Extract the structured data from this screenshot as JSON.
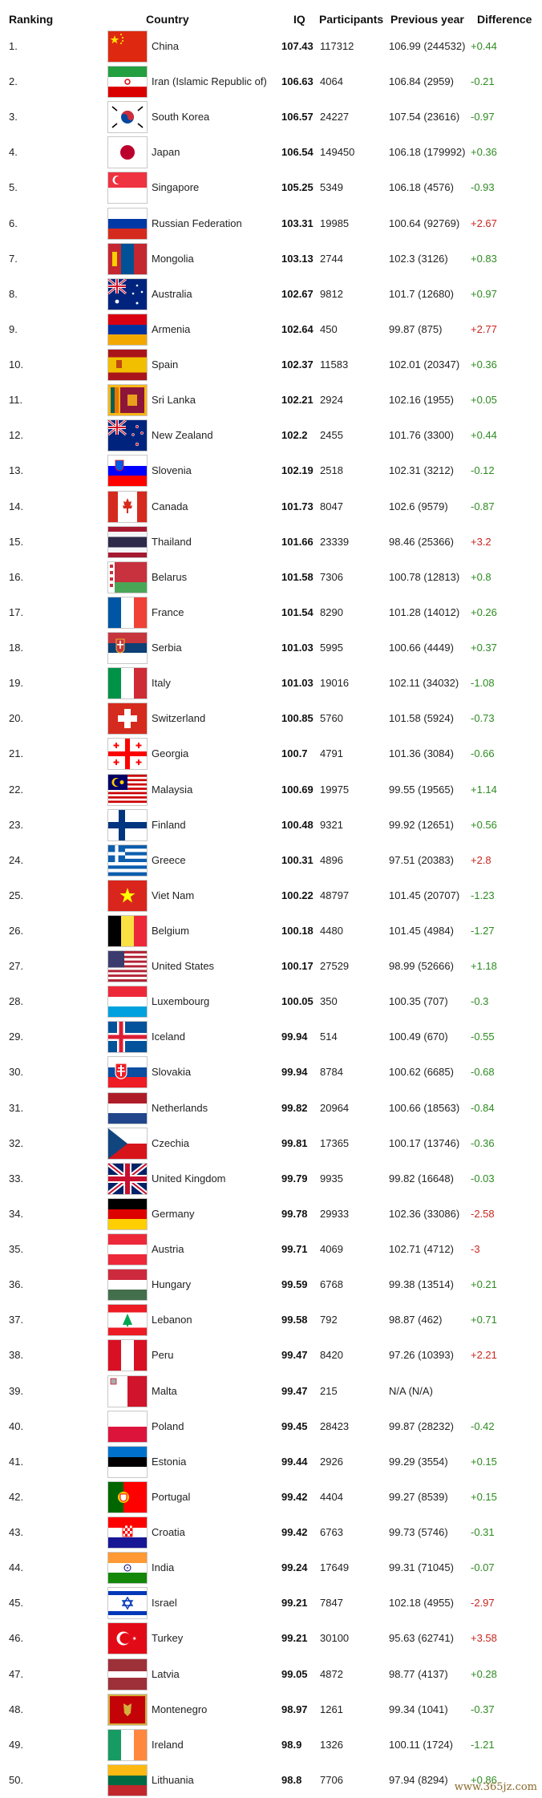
{
  "headers": {
    "ranking": "Ranking",
    "country": "Country",
    "iq": "IQ",
    "participants": "Participants",
    "previous_year": "Previous year",
    "difference": "Difference"
  },
  "rows": [
    {
      "rank": "1.",
      "country": "China",
      "iq": "107.43",
      "participants": "117312",
      "prev": "106.99 (244532)",
      "diff": "+0.44",
      "trend": "pos",
      "flag": "cn"
    },
    {
      "rank": "2.",
      "country": "Iran (Islamic Republic of)",
      "iq": "106.63",
      "participants": "4064",
      "prev": "106.84 (2959)",
      "diff": "-0.21",
      "trend": "pos",
      "flag": "ir"
    },
    {
      "rank": "3.",
      "country": "South Korea",
      "iq": "106.57",
      "participants": "24227",
      "prev": "107.54 (23616)",
      "diff": "-0.97",
      "trend": "pos",
      "flag": "kr"
    },
    {
      "rank": "4.",
      "country": "Japan",
      "iq": "106.54",
      "participants": "149450",
      "prev": "106.18 (179992)",
      "diff": "+0.36",
      "trend": "pos",
      "flag": "jp"
    },
    {
      "rank": "5.",
      "country": "Singapore",
      "iq": "105.25",
      "participants": "5349",
      "prev": "106.18 (4576)",
      "diff": "-0.93",
      "trend": "pos",
      "flag": "sg"
    },
    {
      "rank": "6.",
      "country": "Russian Federation",
      "iq": "103.31",
      "participants": "19985",
      "prev": "100.64 (92769)",
      "diff": "+2.67",
      "trend": "neg",
      "flag": "ru"
    },
    {
      "rank": "7.",
      "country": "Mongolia",
      "iq": "103.13",
      "participants": "2744",
      "prev": "102.3 (3126)",
      "diff": "+0.83",
      "trend": "pos",
      "flag": "mn"
    },
    {
      "rank": "8.",
      "country": "Australia",
      "iq": "102.67",
      "participants": "9812",
      "prev": "101.7 (12680)",
      "diff": "+0.97",
      "trend": "pos",
      "flag": "au"
    },
    {
      "rank": "9.",
      "country": "Armenia",
      "iq": "102.64",
      "participants": "450",
      "prev": "99.87 (875)",
      "diff": "+2.77",
      "trend": "neg",
      "flag": "am"
    },
    {
      "rank": "10.",
      "country": "Spain",
      "iq": "102.37",
      "participants": "11583",
      "prev": "102.01 (20347)",
      "diff": "+0.36",
      "trend": "pos",
      "flag": "es"
    },
    {
      "rank": "11.",
      "country": "Sri Lanka",
      "iq": "102.21",
      "participants": "2924",
      "prev": "102.16 (1955)",
      "diff": "+0.05",
      "trend": "pos",
      "flag": "lk"
    },
    {
      "rank": "12.",
      "country": "New Zealand",
      "iq": "102.2",
      "participants": "2455",
      "prev": "101.76 (3300)",
      "diff": "+0.44",
      "trend": "pos",
      "flag": "nz"
    },
    {
      "rank": "13.",
      "country": "Slovenia",
      "iq": "102.19",
      "participants": "2518",
      "prev": "102.31 (3212)",
      "diff": "-0.12",
      "trend": "pos",
      "flag": "si"
    },
    {
      "rank": "14.",
      "country": "Canada",
      "iq": "101.73",
      "participants": "8047",
      "prev": "102.6 (9579)",
      "diff": "-0.87",
      "trend": "pos",
      "flag": "ca"
    },
    {
      "rank": "15.",
      "country": "Thailand",
      "iq": "101.66",
      "participants": "23339",
      "prev": "98.46 (25366)",
      "diff": "+3.2",
      "trend": "neg",
      "flag": "th"
    },
    {
      "rank": "16.",
      "country": "Belarus",
      "iq": "101.58",
      "participants": "7306",
      "prev": "100.78 (12813)",
      "diff": "+0.8",
      "trend": "pos",
      "flag": "by"
    },
    {
      "rank": "17.",
      "country": "France",
      "iq": "101.54",
      "participants": "8290",
      "prev": "101.28 (14012)",
      "diff": "+0.26",
      "trend": "pos",
      "flag": "fr"
    },
    {
      "rank": "18.",
      "country": "Serbia",
      "iq": "101.03",
      "participants": "5995",
      "prev": "100.66 (4449)",
      "diff": "+0.37",
      "trend": "pos",
      "flag": "rs"
    },
    {
      "rank": "19.",
      "country": "Italy",
      "iq": "101.03",
      "participants": "19016",
      "prev": "102.11 (34032)",
      "diff": "-1.08",
      "trend": "pos",
      "flag": "it"
    },
    {
      "rank": "20.",
      "country": "Switzerland",
      "iq": "100.85",
      "participants": "5760",
      "prev": "101.58 (5924)",
      "diff": "-0.73",
      "trend": "pos",
      "flag": "ch"
    },
    {
      "rank": "21.",
      "country": "Georgia",
      "iq": "100.7",
      "participants": "4791",
      "prev": "101.36 (3084)",
      "diff": "-0.66",
      "trend": "pos",
      "flag": "ge"
    },
    {
      "rank": "22.",
      "country": "Malaysia",
      "iq": "100.69",
      "participants": "19975",
      "prev": "99.55 (19565)",
      "diff": "+1.14",
      "trend": "pos",
      "flag": "my"
    },
    {
      "rank": "23.",
      "country": "Finland",
      "iq": "100.48",
      "participants": "9321",
      "prev": "99.92 (12651)",
      "diff": "+0.56",
      "trend": "pos",
      "flag": "fi"
    },
    {
      "rank": "24.",
      "country": "Greece",
      "iq": "100.31",
      "participants": "4896",
      "prev": "97.51 (20383)",
      "diff": "+2.8",
      "trend": "neg",
      "flag": "gr"
    },
    {
      "rank": "25.",
      "country": "Viet Nam",
      "iq": "100.22",
      "participants": "48797",
      "prev": "101.45 (20707)",
      "diff": "-1.23",
      "trend": "pos",
      "flag": "vn"
    },
    {
      "rank": "26.",
      "country": "Belgium",
      "iq": "100.18",
      "participants": "4480",
      "prev": "101.45 (4984)",
      "diff": "-1.27",
      "trend": "pos",
      "flag": "be"
    },
    {
      "rank": "27.",
      "country": "United States",
      "iq": "100.17",
      "participants": "27529",
      "prev": "98.99 (52666)",
      "diff": "+1.18",
      "trend": "pos",
      "flag": "us"
    },
    {
      "rank": "28.",
      "country": "Luxembourg",
      "iq": "100.05",
      "participants": "350",
      "prev": "100.35 (707)",
      "diff": "-0.3",
      "trend": "pos",
      "flag": "lu"
    },
    {
      "rank": "29.",
      "country": "Iceland",
      "iq": "99.94",
      "participants": "514",
      "prev": "100.49 (670)",
      "diff": "-0.55",
      "trend": "pos",
      "flag": "is"
    },
    {
      "rank": "30.",
      "country": "Slovakia",
      "iq": "99.94",
      "participants": "8784",
      "prev": "100.62 (6685)",
      "diff": "-0.68",
      "trend": "pos",
      "flag": "sk"
    },
    {
      "rank": "31.",
      "country": "Netherlands",
      "iq": "99.82",
      "participants": "20964",
      "prev": "100.66 (18563)",
      "diff": "-0.84",
      "trend": "pos",
      "flag": "nl"
    },
    {
      "rank": "32.",
      "country": "Czechia",
      "iq": "99.81",
      "participants": "17365",
      "prev": "100.17 (13746)",
      "diff": "-0.36",
      "trend": "pos",
      "flag": "cz"
    },
    {
      "rank": "33.",
      "country": "United Kingdom",
      "iq": "99.79",
      "participants": "9935",
      "prev": "99.82 (16648)",
      "diff": "-0.03",
      "trend": "pos",
      "flag": "gb"
    },
    {
      "rank": "34.",
      "country": "Germany",
      "iq": "99.78",
      "participants": "29933",
      "prev": "102.36 (33086)",
      "diff": "-2.58",
      "trend": "neg",
      "flag": "de"
    },
    {
      "rank": "35.",
      "country": "Austria",
      "iq": "99.71",
      "participants": "4069",
      "prev": "102.71 (4712)",
      "diff": "-3",
      "trend": "neg",
      "flag": "at"
    },
    {
      "rank": "36.",
      "country": "Hungary",
      "iq": "99.59",
      "participants": "6768",
      "prev": "99.38 (13514)",
      "diff": "+0.21",
      "trend": "pos",
      "flag": "hu"
    },
    {
      "rank": "37.",
      "country": "Lebanon",
      "iq": "99.58",
      "participants": "792",
      "prev": "98.87 (462)",
      "diff": "+0.71",
      "trend": "pos",
      "flag": "lb"
    },
    {
      "rank": "38.",
      "country": "Peru",
      "iq": "99.47",
      "participants": "8420",
      "prev": "97.26 (10393)",
      "diff": "+2.21",
      "trend": "neg",
      "flag": "pe"
    },
    {
      "rank": "39.",
      "country": "Malta",
      "iq": "99.47",
      "participants": "215",
      "prev": "N/A (N/A)",
      "diff": "",
      "trend": "pos",
      "flag": "mt"
    },
    {
      "rank": "40.",
      "country": "Poland",
      "iq": "99.45",
      "participants": "28423",
      "prev": "99.87 (28232)",
      "diff": "-0.42",
      "trend": "pos",
      "flag": "pl"
    },
    {
      "rank": "41.",
      "country": "Estonia",
      "iq": "99.44",
      "participants": "2926",
      "prev": "99.29 (3554)",
      "diff": "+0.15",
      "trend": "pos",
      "flag": "ee"
    },
    {
      "rank": "42.",
      "country": "Portugal",
      "iq": "99.42",
      "participants": "4404",
      "prev": "99.27 (8539)",
      "diff": "+0.15",
      "trend": "pos",
      "flag": "pt"
    },
    {
      "rank": "43.",
      "country": "Croatia",
      "iq": "99.42",
      "participants": "6763",
      "prev": "99.73 (5746)",
      "diff": "-0.31",
      "trend": "pos",
      "flag": "hr"
    },
    {
      "rank": "44.",
      "country": "India",
      "iq": "99.24",
      "participants": "17649",
      "prev": "99.31 (71045)",
      "diff": "-0.07",
      "trend": "pos",
      "flag": "in"
    },
    {
      "rank": "45.",
      "country": "Israel",
      "iq": "99.21",
      "participants": "7847",
      "prev": "102.18 (4955)",
      "diff": "-2.97",
      "trend": "neg",
      "flag": "il"
    },
    {
      "rank": "46.",
      "country": "Turkey",
      "iq": "99.21",
      "participants": "30100",
      "prev": "95.63 (62741)",
      "diff": "+3.58",
      "trend": "neg",
      "flag": "tr"
    },
    {
      "rank": "47.",
      "country": "Latvia",
      "iq": "99.05",
      "participants": "4872",
      "prev": "98.77 (4137)",
      "diff": "+0.28",
      "trend": "pos",
      "flag": "lv"
    },
    {
      "rank": "48.",
      "country": "Montenegro",
      "iq": "98.97",
      "participants": "1261",
      "prev": "99.34 (1041)",
      "diff": "-0.37",
      "trend": "pos",
      "flag": "me"
    },
    {
      "rank": "49.",
      "country": "Ireland",
      "iq": "98.9",
      "participants": "1326",
      "prev": "100.11 (1724)",
      "diff": "-1.21",
      "trend": "pos",
      "flag": "ie"
    },
    {
      "rank": "50.",
      "country": "Lithuania",
      "iq": "98.8",
      "participants": "7706",
      "prev": "97.94 (8294)",
      "diff": "+0.86",
      "trend": "pos",
      "flag": "lt"
    }
  ],
  "watermark": "www.365jz.com",
  "colors": {
    "positive": "#2e8b22",
    "negative": "#c8261e"
  }
}
